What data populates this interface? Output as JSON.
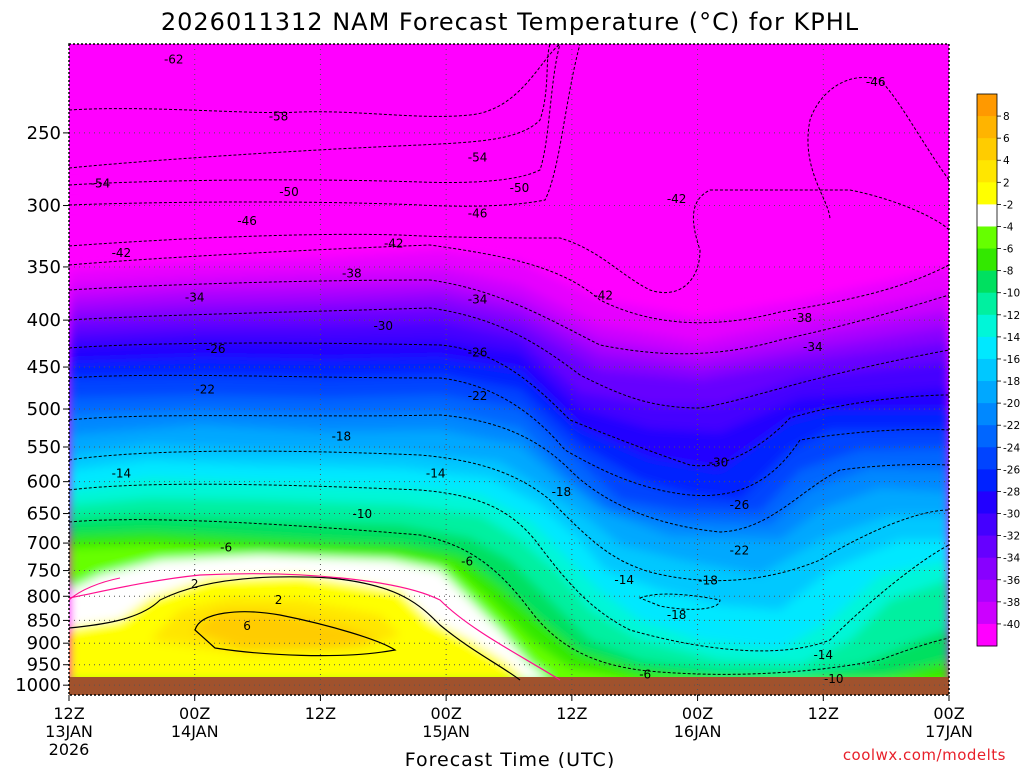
{
  "chart_data": {
    "type": "heatmap",
    "title": "2026011312 NAM Forecast Temperature (°C) for KPHL",
    "xlabel": "Forecast Time (UTC)",
    "ylabel": "",
    "x_ticks": [
      {
        "hour": 0,
        "line1": "12Z",
        "line2": "13JAN",
        "line3": "2026"
      },
      {
        "hour": 12,
        "line1": "00Z",
        "line2": "14JAN",
        "line3": ""
      },
      {
        "hour": 24,
        "line1": "12Z",
        "line2": "",
        "line3": ""
      },
      {
        "hour": 36,
        "line1": "00Z",
        "line2": "15JAN",
        "line3": ""
      },
      {
        "hour": 48,
        "line1": "12Z",
        "line2": "",
        "line3": ""
      },
      {
        "hour": 60,
        "line1": "00Z",
        "line2": "16JAN",
        "line3": ""
      },
      {
        "hour": 72,
        "line1": "12Z",
        "line2": "",
        "line3": ""
      },
      {
        "hour": 84,
        "line1": "00Z",
        "line2": "17JAN",
        "line3": ""
      }
    ],
    "y_ticks": [
      "250",
      "300",
      "350",
      "400",
      "450",
      "500",
      "550",
      "600",
      "650",
      "700",
      "750",
      "800",
      "850",
      "900",
      "950",
      "1000"
    ],
    "ylim": [
      1025,
      200
    ],
    "y_scale": "log",
    "xlim": [
      0,
      84
    ],
    "colorbar": {
      "labels": [
        "8",
        "6",
        "4",
        "2",
        "-2",
        "-4",
        "-6",
        "-8",
        "-10",
        "-12",
        "-14",
        "-16",
        "-18",
        "-20",
        "-22",
        "-24",
        "-26",
        "-28",
        "-30",
        "-32",
        "-34",
        "-36",
        "-38",
        "-40"
      ],
      "colors": [
        "#ff9900",
        "#ffb400",
        "#ffcc00",
        "#ffe600",
        "#ffff00",
        "#ffffff",
        "#66ff00",
        "#33e800",
        "#00e060",
        "#00f0a0",
        "#00f6d8",
        "#00e8ff",
        "#00c8ff",
        "#00a8ff",
        "#0088ff",
        "#0066ff",
        "#0044ff",
        "#0022ff",
        "#2200ff",
        "#4400ff",
        "#6600ff",
        "#8800ff",
        "#aa00ff",
        "#cc00ff",
        "#ff00ff"
      ]
    },
    "contour_labels": [
      {
        "t": 10,
        "p": 208,
        "v": "-62"
      },
      {
        "t": 20,
        "p": 240,
        "v": "-58"
      },
      {
        "t": 3,
        "p": 284,
        "v": "-54"
      },
      {
        "t": 39,
        "p": 266,
        "v": "-54"
      },
      {
        "t": 43,
        "p": 287,
        "v": "-50"
      },
      {
        "t": 21,
        "p": 290,
        "v": "-50"
      },
      {
        "t": 17,
        "p": 312,
        "v": "-46"
      },
      {
        "t": 39,
        "p": 306,
        "v": "-46"
      },
      {
        "t": 77,
        "p": 220,
        "v": "-46"
      },
      {
        "t": 58,
        "p": 295,
        "v": "-42"
      },
      {
        "t": 5,
        "p": 338,
        "v": "-42"
      },
      {
        "t": 31,
        "p": 330,
        "v": "-42"
      },
      {
        "t": 51,
        "p": 376,
        "v": "-42"
      },
      {
        "t": 27,
        "p": 356,
        "v": "-38"
      },
      {
        "t": 70,
        "p": 398,
        "v": "-38"
      },
      {
        "t": 12,
        "p": 378,
        "v": "-34"
      },
      {
        "t": 39,
        "p": 380,
        "v": "-34"
      },
      {
        "t": 71,
        "p": 428,
        "v": "-34"
      },
      {
        "t": 30,
        "p": 406,
        "v": "-30"
      },
      {
        "t": 62,
        "p": 572,
        "v": "-30"
      },
      {
        "t": 14,
        "p": 430,
        "v": "-26"
      },
      {
        "t": 39,
        "p": 434,
        "v": "-26"
      },
      {
        "t": 64,
        "p": 636,
        "v": "-26"
      },
      {
        "t": 13,
        "p": 476,
        "v": "-22"
      },
      {
        "t": 39,
        "p": 484,
        "v": "-22"
      },
      {
        "t": 64,
        "p": 713,
        "v": "-22"
      },
      {
        "t": 26,
        "p": 536,
        "v": "-18"
      },
      {
        "t": 47,
        "p": 616,
        "v": "-18"
      },
      {
        "t": 61,
        "p": 769,
        "v": "-18"
      },
      {
        "t": 58,
        "p": 839,
        "v": "-18"
      },
      {
        "t": 5,
        "p": 588,
        "v": "-14"
      },
      {
        "t": 35,
        "p": 588,
        "v": "-14"
      },
      {
        "t": 53,
        "p": 768,
        "v": "-14"
      },
      {
        "t": 72,
        "p": 927,
        "v": "-14"
      },
      {
        "t": 28,
        "p": 651,
        "v": "-10"
      },
      {
        "t": 73,
        "p": 985,
        "v": "-10"
      },
      {
        "t": 15,
        "p": 708,
        "v": "-6"
      },
      {
        "t": 38,
        "p": 733,
        "v": "-6"
      },
      {
        "t": 55,
        "p": 974,
        "v": "-6"
      },
      {
        "t": 12,
        "p": 776,
        "v": "2"
      },
      {
        "t": 20,
        "p": 808,
        "v": "2"
      },
      {
        "t": 17,
        "p": 862,
        "v": "6"
      }
    ]
  }
}
